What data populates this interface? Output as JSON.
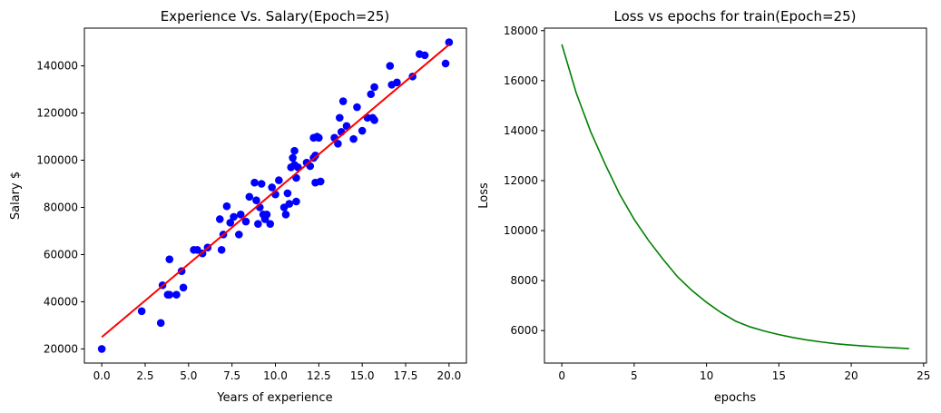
{
  "chart_data": [
    {
      "type": "scatter",
      "title": "Experience Vs. Salary(Epoch=25)",
      "xlabel": "Years of experience",
      "ylabel": "Salary $",
      "xlim": [
        -1.0,
        21.0
      ],
      "ylim": [
        14000,
        156000
      ],
      "xticks": [
        "0.0",
        "2.5",
        "5.0",
        "7.5",
        "10.0",
        "12.5",
        "15.0",
        "17.5",
        "20.0"
      ],
      "yticks": [
        "20000",
        "40000",
        "60000",
        "80000",
        "100000",
        "120000",
        "140000"
      ],
      "grid": false,
      "colors": {
        "points": "#0000ff",
        "fit": "#ff0000"
      },
      "series": [
        {
          "kind": "points",
          "x": [
            0.0,
            2.3,
            3.4,
            3.5,
            3.8,
            3.9,
            3.9,
            4.3,
            4.6,
            4.7,
            5.3,
            5.5,
            5.8,
            6.1,
            6.8,
            6.9,
            7.0,
            7.2,
            7.4,
            7.6,
            7.9,
            8.0,
            8.3,
            8.5,
            8.8,
            8.9,
            9.0,
            9.1,
            9.2,
            9.3,
            9.4,
            9.5,
            9.7,
            9.8,
            10.0,
            10.2,
            10.5,
            10.6,
            10.7,
            10.8,
            10.9,
            11.0,
            11.1,
            11.1,
            11.2,
            11.2,
            11.3,
            11.8,
            12.0,
            12.2,
            12.2,
            12.3,
            12.3,
            12.4,
            12.5,
            12.6,
            13.4,
            13.6,
            13.7,
            13.8,
            13.9,
            14.1,
            14.5,
            14.7,
            15.0,
            15.3,
            15.5,
            15.6,
            15.7,
            15.7,
            16.6,
            16.7,
            17.0,
            17.9,
            18.3,
            18.6,
            19.8,
            20.0
          ],
          "y": [
            20000,
            36000,
            31000,
            47000,
            43000,
            58000,
            43000,
            43000,
            53000,
            46000,
            62000,
            62000,
            60500,
            63000,
            75000,
            62000,
            68500,
            80500,
            73500,
            76000,
            68500,
            77000,
            74000,
            84500,
            90500,
            83000,
            73000,
            80000,
            90000,
            77000,
            75000,
            77000,
            73000,
            88500,
            85500,
            91500,
            80000,
            77000,
            86000,
            81500,
            97000,
            101000,
            98000,
            104000,
            92500,
            82500,
            97000,
            99000,
            97500,
            109500,
            101000,
            90500,
            102000,
            110000,
            109500,
            91000,
            109500,
            107000,
            118000,
            112000,
            125000,
            114500,
            109000,
            122500,
            112500,
            118000,
            128000,
            118000,
            131000,
            117000,
            140000,
            132000,
            133000,
            135500,
            145000,
            144500,
            141000,
            150000
          ]
        },
        {
          "kind": "fit",
          "x": [
            0.0,
            20.0
          ],
          "y": [
            25000,
            149000
          ]
        }
      ]
    },
    {
      "type": "line",
      "title": "Loss vs epochs for train(Epoch=25)",
      "xlabel": "epochs",
      "ylabel": "Loss",
      "xlim": [
        -1.2,
        25.2
      ],
      "ylim": [
        4700,
        18100
      ],
      "xticks": [
        "0",
        "5",
        "10",
        "15",
        "20",
        "25"
      ],
      "yticks": [
        "6000",
        "8000",
        "10000",
        "12000",
        "14000",
        "16000",
        "18000"
      ],
      "grid": false,
      "colors": {
        "line": "#008000"
      },
      "series": [
        {
          "x": [
            0,
            1,
            2,
            3,
            4,
            5,
            6,
            7,
            8,
            9,
            10,
            11,
            12,
            13,
            14,
            15,
            16,
            17,
            18,
            19,
            20,
            21,
            22,
            23,
            24
          ],
          "y": [
            17450,
            15500,
            13950,
            12650,
            11450,
            10450,
            9600,
            8850,
            8150,
            7600,
            7130,
            6720,
            6380,
            6150,
            5980,
            5840,
            5720,
            5620,
            5540,
            5470,
            5420,
            5380,
            5340,
            5310,
            5280
          ]
        }
      ]
    }
  ]
}
